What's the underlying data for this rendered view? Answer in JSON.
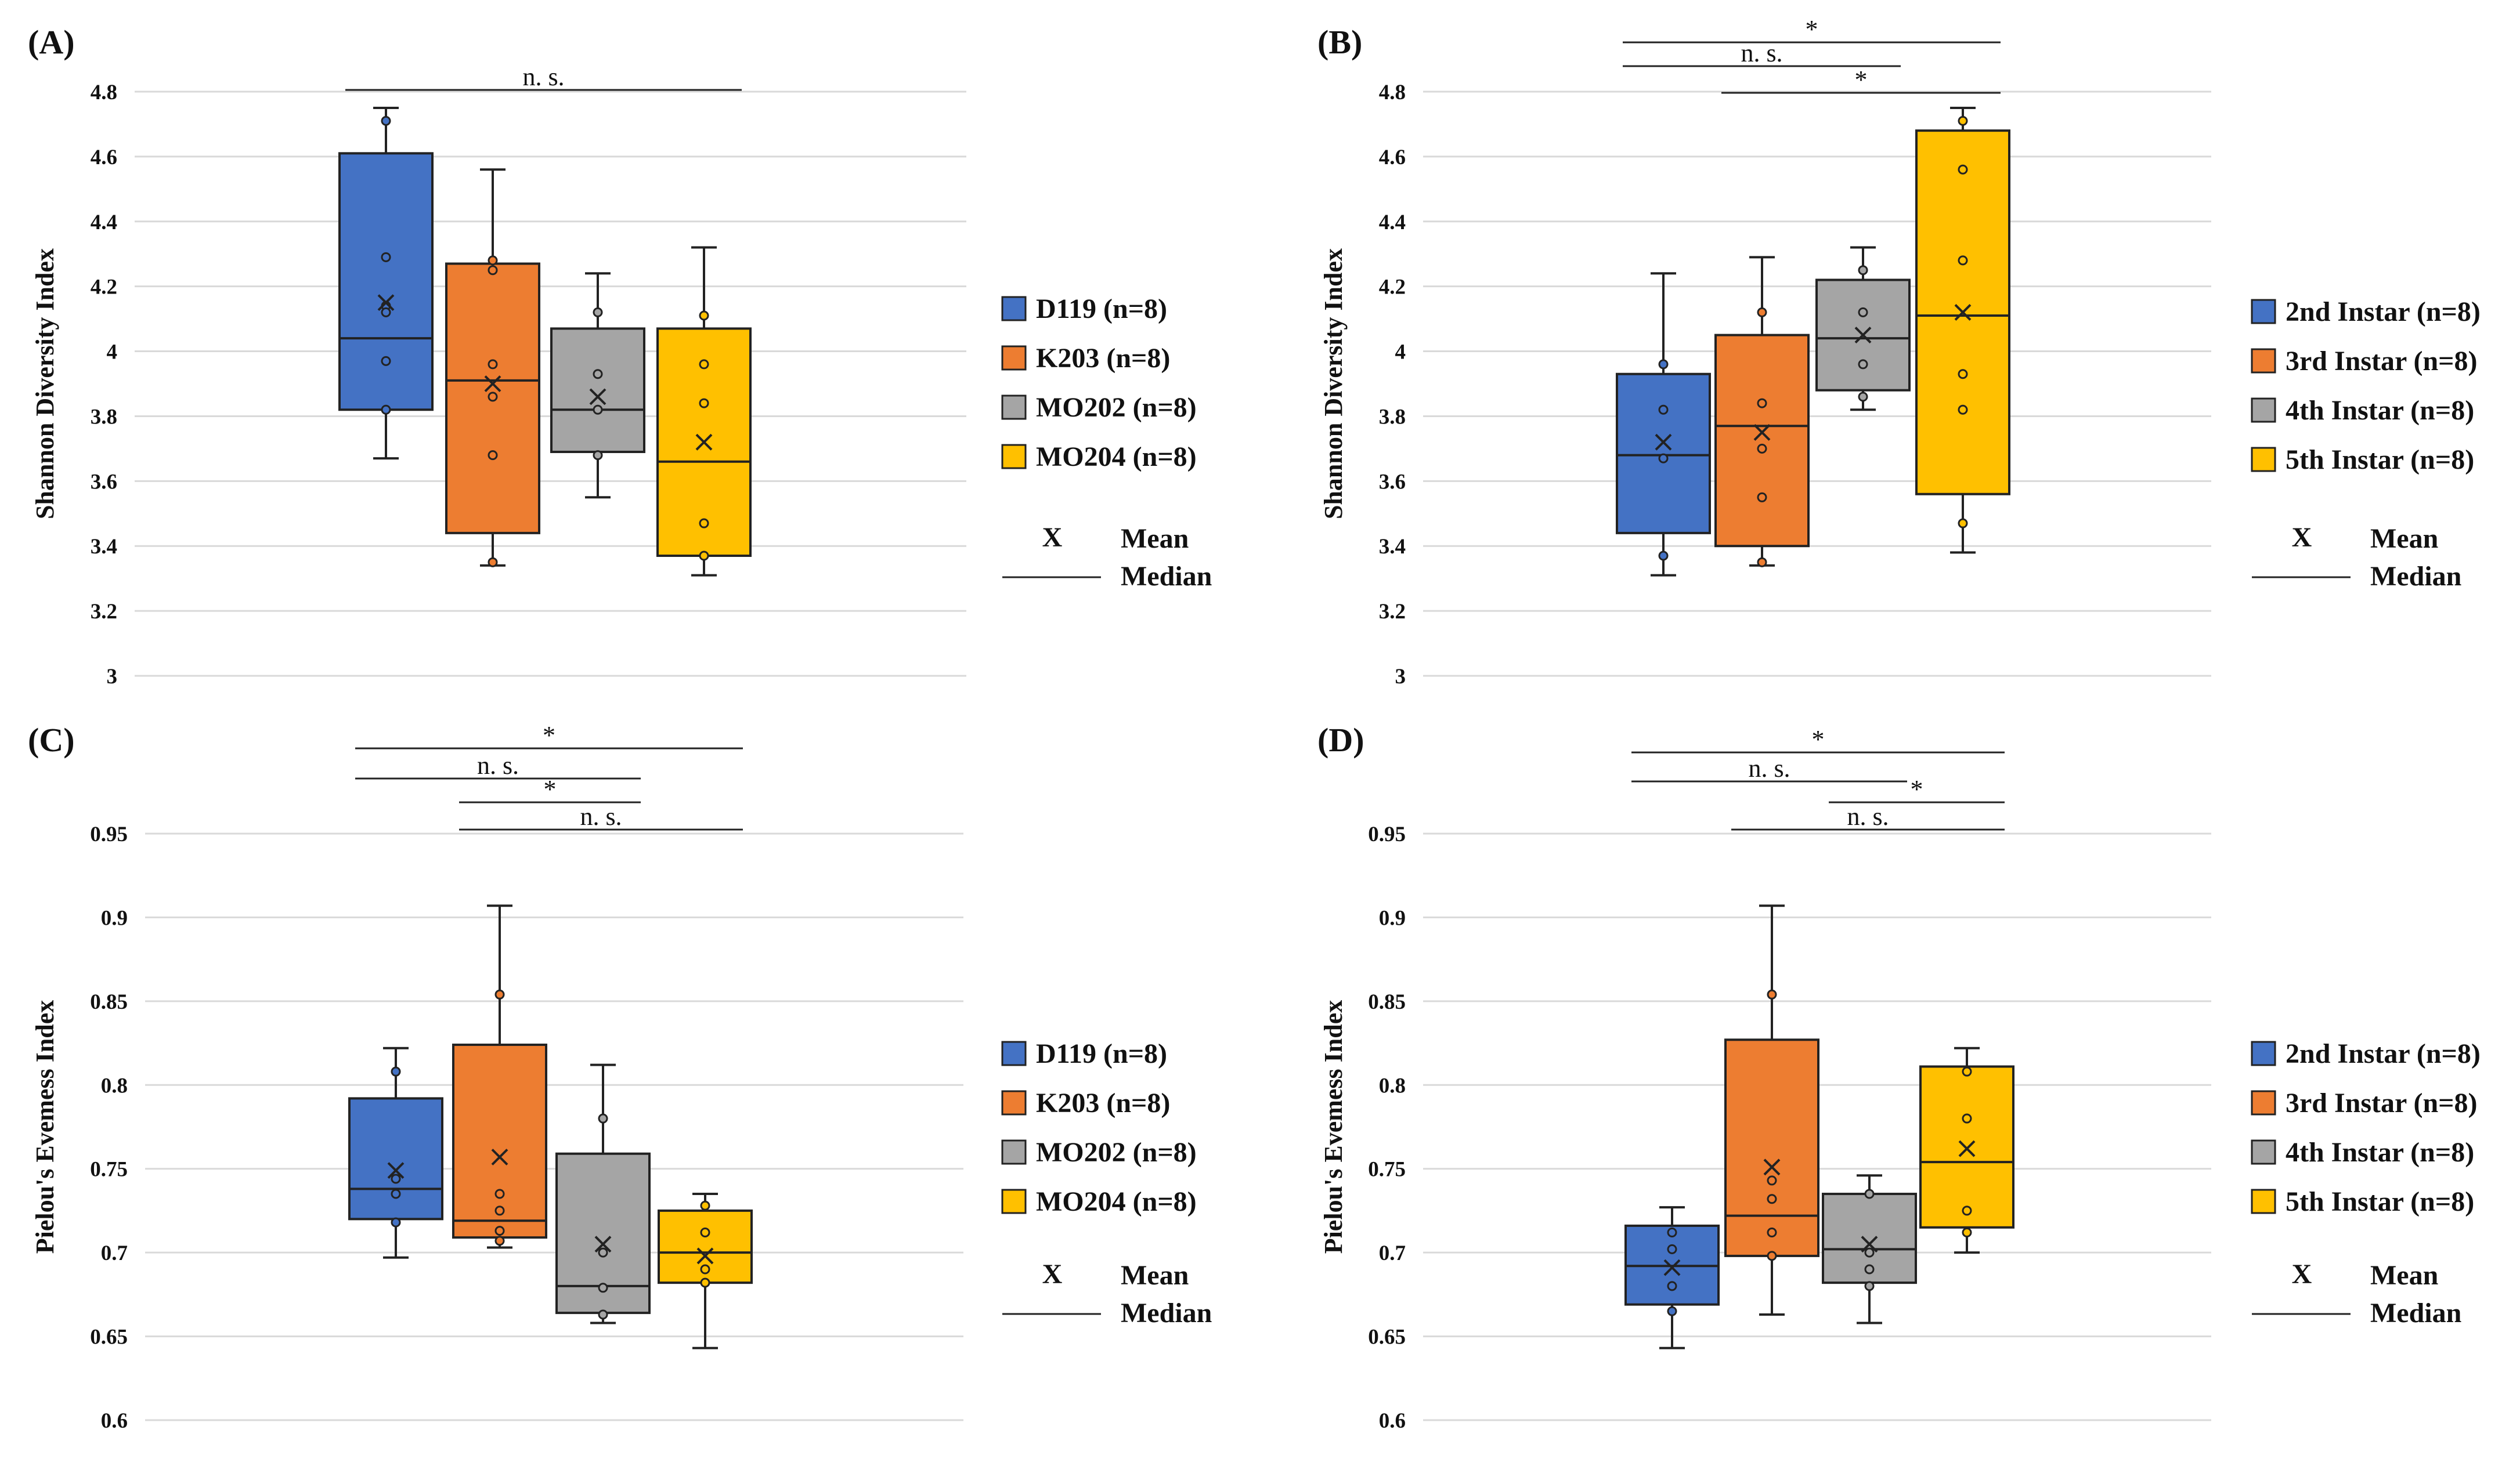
{
  "figure": {
    "legend_mean_symbol": "X",
    "legend_mean": "Mean",
    "legend_median": "Median"
  },
  "chart_data": [
    {
      "panel": "(A)",
      "type": "box",
      "ylabel": "Shannon Diversity Index",
      "ylim": [
        3,
        4.8
      ],
      "yticks": [
        "3",
        "3.2",
        "3.4",
        "3.6",
        "3.8",
        "4",
        "4.2",
        "4.4",
        "4.6",
        "4.8"
      ],
      "tick_step": 0.2,
      "grid": true,
      "legend_position": "right",
      "series": [
        {
          "name": "D119 (n=8)",
          "color": "#4472C4",
          "min": 3.67,
          "q1": 3.82,
          "median": 4.04,
          "q3": 4.61,
          "max": 4.75,
          "mean": 4.15,
          "points": [
            4.71,
            4.29,
            4.14,
            4.12,
            3.97,
            3.82
          ]
        },
        {
          "name": "K203 (n=8)",
          "color": "#ED7D31",
          "min": 3.34,
          "q1": 3.44,
          "median": 3.91,
          "q3": 4.27,
          "max": 4.56,
          "mean": 3.9,
          "points": [
            4.28,
            4.25,
            3.96,
            3.86,
            3.68,
            3.35
          ]
        },
        {
          "name": "MO202 (n=8)",
          "color": "#A5A5A5",
          "min": 3.55,
          "q1": 3.69,
          "median": 3.82,
          "q3": 4.07,
          "max": 4.24,
          "mean": 3.86,
          "points": [
            4.12,
            3.93,
            3.82,
            3.68
          ]
        },
        {
          "name": "MO204 (n=8)",
          "color": "#FFC000",
          "min": 3.31,
          "q1": 3.37,
          "median": 3.66,
          "q3": 4.07,
          "max": 4.32,
          "mean": 3.72,
          "points": [
            4.11,
            3.96,
            3.84,
            3.47,
            3.37
          ]
        }
      ],
      "brackets": [
        {
          "from": 0,
          "to": 3,
          "label": "n. s."
        }
      ]
    },
    {
      "panel": "(B)",
      "type": "box",
      "ylabel": "Shannon Diversity Index",
      "ylim": [
        3,
        4.8
      ],
      "yticks": [
        "3",
        "3.2",
        "3.4",
        "3.6",
        "3.8",
        "4",
        "4.2",
        "4.4",
        "4.6",
        "4.8"
      ],
      "tick_step": 0.2,
      "grid": true,
      "legend_position": "right",
      "series": [
        {
          "name": "2nd Instar (n=8)",
          "color": "#4472C4",
          "min": 3.31,
          "q1": 3.44,
          "median": 3.68,
          "q3": 3.93,
          "max": 4.24,
          "mean": 3.72,
          "points": [
            3.96,
            3.82,
            3.67,
            3.37
          ]
        },
        {
          "name": "3rd Instar (n=8)",
          "color": "#ED7D31",
          "min": 3.34,
          "q1": 3.4,
          "median": 3.77,
          "q3": 4.05,
          "max": 4.29,
          "mean": 3.75,
          "points": [
            4.12,
            3.84,
            3.7,
            3.55,
            3.35
          ]
        },
        {
          "name": "4th Instar (n=8)",
          "color": "#A5A5A5",
          "min": 3.82,
          "q1": 3.88,
          "median": 4.04,
          "q3": 4.22,
          "max": 4.32,
          "mean": 4.05,
          "points": [
            4.25,
            4.12,
            3.96,
            3.86
          ]
        },
        {
          "name": "5th Instar (n=8)",
          "color": "#FFC000",
          "min": 3.38,
          "q1": 3.56,
          "median": 4.11,
          "q3": 4.68,
          "max": 4.75,
          "mean": 4.12,
          "points": [
            4.71,
            4.56,
            4.28,
            3.93,
            3.82,
            3.47
          ]
        }
      ],
      "brackets": [
        {
          "from": 0,
          "to": 3,
          "label": "*"
        },
        {
          "from": 0,
          "to": 2,
          "label": "n. s."
        },
        {
          "from": 1,
          "to": 3,
          "label": "*"
        }
      ]
    },
    {
      "panel": "(C)",
      "type": "box",
      "ylabel": "Pielou's Evemess Index",
      "ylim": [
        0.6,
        0.95
      ],
      "yticks": [
        "0.6",
        "0.65",
        "0.7",
        "0.75",
        "0.8",
        "0.85",
        "0.9",
        "0.95"
      ],
      "tick_step": 0.05,
      "grid": true,
      "legend_position": "right",
      "series": [
        {
          "name": "D119 (n=8)",
          "color": "#4472C4",
          "min": 0.697,
          "q1": 0.72,
          "median": 0.738,
          "q3": 0.792,
          "max": 0.822,
          "mean": 0.749,
          "points": [
            0.808,
            0.744,
            0.735,
            0.718
          ]
        },
        {
          "name": "K203 (n=8)",
          "color": "#ED7D31",
          "min": 0.703,
          "q1": 0.709,
          "median": 0.719,
          "q3": 0.824,
          "max": 0.907,
          "mean": 0.757,
          "points": [
            0.854,
            0.735,
            0.725,
            0.713,
            0.707
          ]
        },
        {
          "name": "MO202 (n=8)",
          "color": "#A5A5A5",
          "min": 0.658,
          "q1": 0.664,
          "median": 0.68,
          "q3": 0.759,
          "max": 0.812,
          "mean": 0.705,
          "points": [
            0.78,
            0.7,
            0.679,
            0.663
          ]
        },
        {
          "name": "MO204 (n=8)",
          "color": "#FFC000",
          "min": 0.643,
          "q1": 0.682,
          "median": 0.7,
          "q3": 0.725,
          "max": 0.735,
          "mean": 0.698,
          "points": [
            0.728,
            0.712,
            0.69,
            0.682
          ]
        }
      ],
      "brackets": [
        {
          "from": 0,
          "to": 3,
          "label": "*"
        },
        {
          "from": 0,
          "to": 2,
          "label": "n. s."
        },
        {
          "from": 1,
          "to": 2,
          "label": "*"
        },
        {
          "from": 1,
          "to": 3,
          "label": "n. s."
        }
      ]
    },
    {
      "panel": "(D)",
      "type": "box",
      "ylabel": "Pielou's Evemess Index",
      "ylim": [
        0.6,
        0.95
      ],
      "yticks": [
        "0.6",
        "0.65",
        "0.7",
        "0.75",
        "0.8",
        "0.85",
        "0.9",
        "0.95"
      ],
      "tick_step": 0.05,
      "grid": true,
      "legend_position": "right",
      "series": [
        {
          "name": "2nd Instar (n=8)",
          "color": "#4472C4",
          "min": 0.643,
          "q1": 0.669,
          "median": 0.692,
          "q3": 0.716,
          "max": 0.727,
          "mean": 0.691,
          "points": [
            0.712,
            0.702,
            0.68,
            0.665
          ]
        },
        {
          "name": "3rd Instar (n=8)",
          "color": "#ED7D31",
          "min": 0.663,
          "q1": 0.698,
          "median": 0.722,
          "q3": 0.827,
          "max": 0.907,
          "mean": 0.751,
          "points": [
            0.854,
            0.743,
            0.732,
            0.712,
            0.698
          ]
        },
        {
          "name": "4th Instar (n=8)",
          "color": "#A5A5A5",
          "min": 0.658,
          "q1": 0.682,
          "median": 0.702,
          "q3": 0.735,
          "max": 0.746,
          "mean": 0.705,
          "points": [
            0.735,
            0.7,
            0.69,
            0.68
          ]
        },
        {
          "name": "5th Instar (n=8)",
          "color": "#FFC000",
          "min": 0.7,
          "q1": 0.715,
          "median": 0.754,
          "q3": 0.811,
          "max": 0.822,
          "mean": 0.762,
          "points": [
            0.808,
            0.78,
            0.725,
            0.712
          ]
        }
      ],
      "brackets": [
        {
          "from": 0,
          "to": 3,
          "label": "*"
        },
        {
          "from": 0,
          "to": 2,
          "label": "n. s."
        },
        {
          "from": 2,
          "to": 3,
          "label": "*"
        },
        {
          "from": 1,
          "to": 3,
          "label": "n. s."
        }
      ]
    }
  ]
}
